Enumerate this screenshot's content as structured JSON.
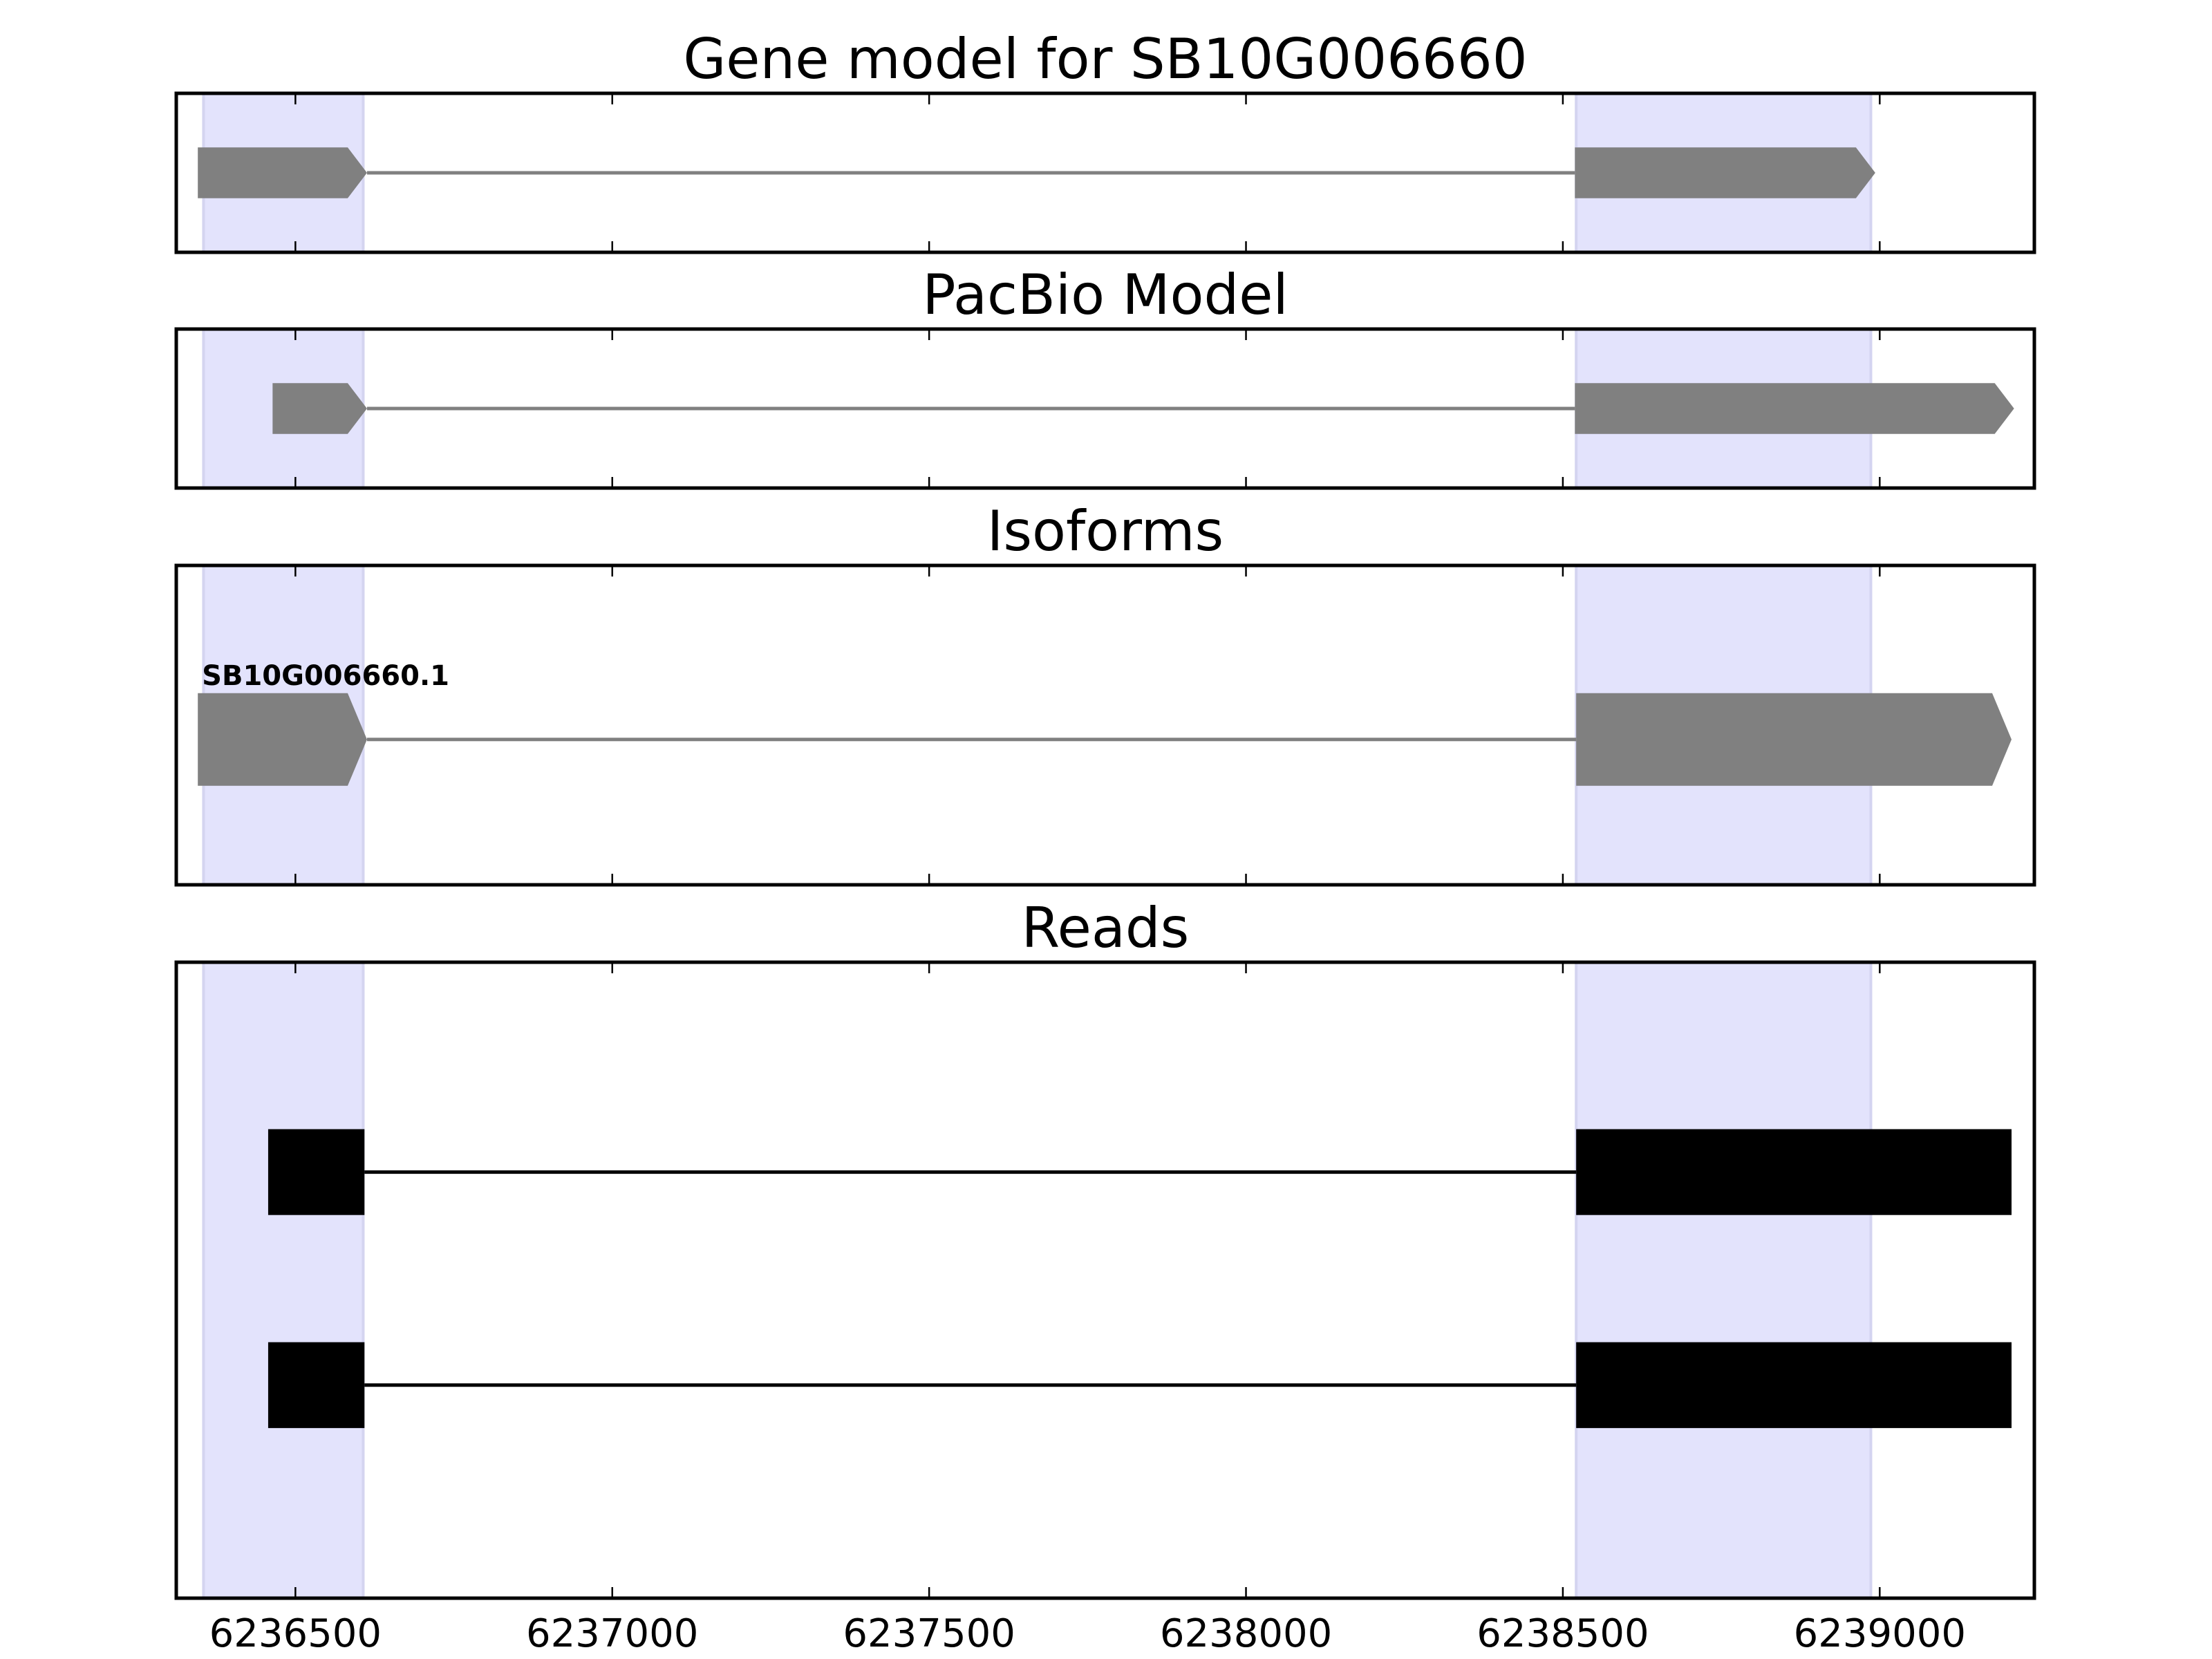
{
  "chart_data": {
    "type": "gene-track",
    "xlim": [
      6236312,
      6239244
    ],
    "xticks": [
      6236500,
      6237000,
      6237500,
      6238000,
      6238500,
      6239000
    ],
    "xtick_labels": [
      "6236500",
      "6237000",
      "6237500",
      "6238000",
      "6238500",
      "6239000"
    ],
    "highlight_regions": [
      [
        6236355,
        6236607
      ],
      [
        6238521,
        6238986
      ]
    ],
    "colors": {
      "highlight": "#e3e3fc",
      "model": "#808080",
      "reads": "#000000",
      "axes": "#000000"
    },
    "panels": [
      {
        "title": "Gene model for SB10G006660",
        "kind": "model",
        "features": [
          {
            "exons": [
              [
                6236346,
                6236613
              ],
              [
                6238519,
                6238993
              ]
            ],
            "y": 0.5,
            "height": 0.32,
            "arrow": true
          }
        ]
      },
      {
        "title": "PacBio Model",
        "kind": "model",
        "features": [
          {
            "exons": [
              [
                6236464,
                6236613
              ],
              [
                6238519,
                6239212
              ]
            ],
            "y": 0.5,
            "height": 0.32,
            "arrow": true
          }
        ]
      },
      {
        "title": "Isoforms",
        "kind": "model",
        "features": [
          {
            "label": "SB10G006660.1",
            "exons": [
              [
                6236346,
                6236613
              ],
              [
                6238521,
                6239208
              ]
            ],
            "y": 0.545,
            "height": 0.29,
            "arrow": true
          }
        ]
      },
      {
        "title": "Reads",
        "kind": "reads",
        "features": [
          {
            "exons": [
              [
                6236457,
                6236609
              ],
              [
                6238521,
                6239208
              ]
            ],
            "y": 0.33,
            "height": 0.135,
            "arrow": false
          },
          {
            "exons": [
              [
                6236457,
                6236609
              ],
              [
                6238521,
                6239208
              ]
            ],
            "y": 0.665,
            "height": 0.135,
            "arrow": false
          }
        ]
      }
    ]
  }
}
